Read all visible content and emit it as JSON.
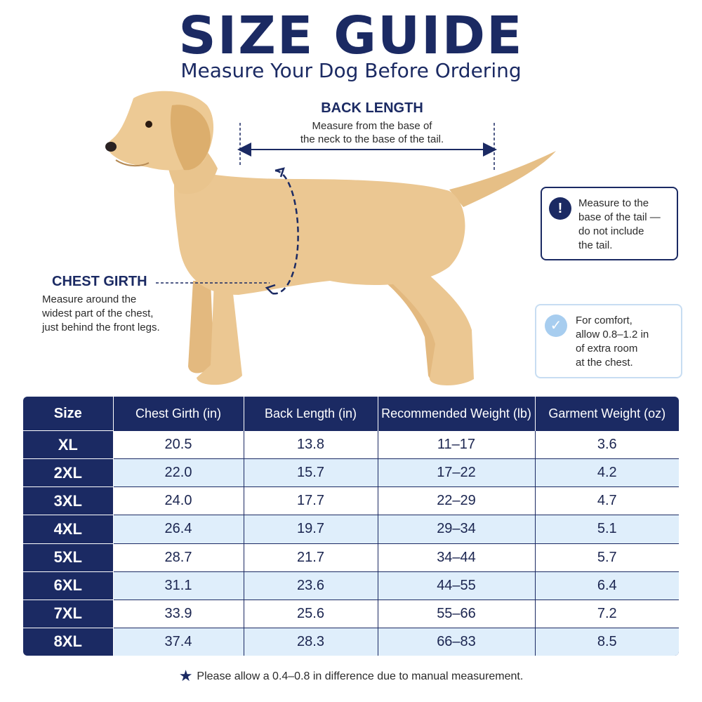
{
  "header": {
    "title": "SIZE GUIDE",
    "subtitle": "Measure Your Dog Before Ordering"
  },
  "illustration": {
    "back_length": {
      "heading": "BACK LENGTH",
      "desc_line1": "Measure from the base of",
      "desc_line2": "the neck to the base of the tail."
    },
    "chest_girth": {
      "heading": "CHEST GIRTH",
      "desc_line1": "Measure around the",
      "desc_line2": "widest part of the chest,",
      "desc_line3": "just behind the front legs."
    },
    "notes": {
      "tail": {
        "icon": "exclamation-icon",
        "line1": "Measure to the",
        "line2": "base of the tail —",
        "line3": "do not include",
        "line4": "the tail."
      },
      "comfort": {
        "icon": "check-icon",
        "line1": "For comfort,",
        "line2": "allow 0.8–1.2 in",
        "line3": "of extra room",
        "line4": "at the chest."
      }
    }
  },
  "table": {
    "headers": [
      "Size",
      "Chest Girth (in)",
      "Back Length (in)",
      "Recommended Weight (lb)",
      "Garment Weight (oz)"
    ],
    "rows": [
      [
        "XL",
        "20.5",
        "13.8",
        "11–17",
        "3.6"
      ],
      [
        "2XL",
        "22.0",
        "15.7",
        "17–22",
        "4.2"
      ],
      [
        "3XL",
        "24.0",
        "17.7",
        "22–29",
        "4.7"
      ],
      [
        "4XL",
        "26.4",
        "19.7",
        "29–34",
        "5.1"
      ],
      [
        "5XL",
        "28.7",
        "21.7",
        "34–44",
        "5.7"
      ],
      [
        "6XL",
        "31.1",
        "23.6",
        "44–55",
        "6.4"
      ],
      [
        "7XL",
        "33.9",
        "25.6",
        "55–66",
        "7.2"
      ],
      [
        "8XL",
        "37.4",
        "28.3",
        "66–83",
        "8.5"
      ]
    ]
  },
  "footnote": {
    "icon": "star-icon",
    "text": "Please allow a 0.4–0.8 in difference due to manual measurement."
  },
  "colors": {
    "navy": "#1b2a63",
    "light_blue_row": "#dfeefb",
    "dog_fur": "#e9c48d"
  }
}
